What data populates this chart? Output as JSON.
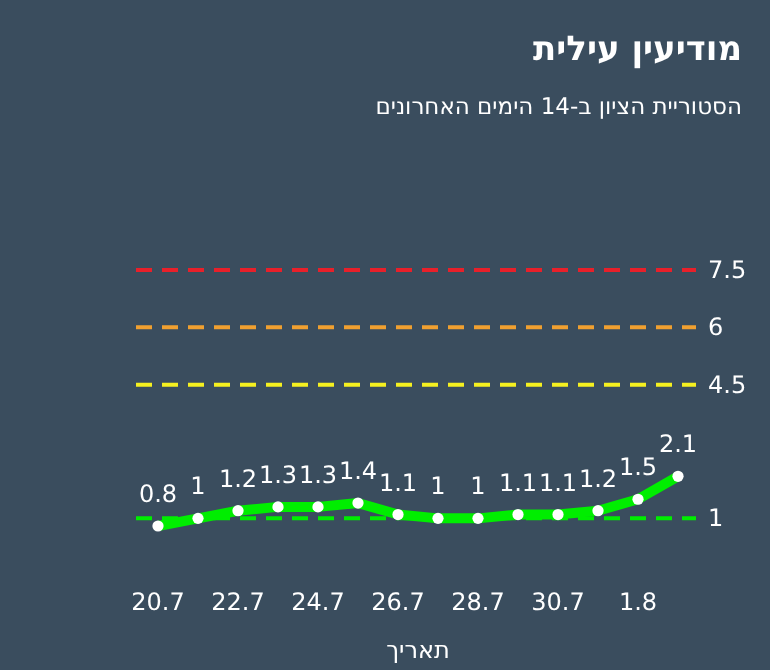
{
  "chart_data": {
    "type": "line",
    "title": "מודיעין עילית",
    "subtitle": "הסטוריית הציון ב-14 הימים האחרונים",
    "xlabel": "תאריך",
    "categories": [
      "20.7",
      null,
      "22.7",
      null,
      "24.7",
      null,
      "26.7",
      null,
      "28.7",
      null,
      "30.7",
      null,
      "1.8",
      null
    ],
    "series": [
      {
        "color": "#00ee00",
        "values": [
          0.8,
          1,
          1.2,
          1.3,
          1.3,
          1.4,
          1.1,
          1,
          1,
          1.1,
          1.1,
          1.2,
          1.5,
          2.1
        ]
      }
    ],
    "tick_labels": "x",
    "marker": "circle",
    "line_style": "solid",
    "data_labels": true,
    "ref_lines": [
      {
        "axis": "y",
        "value": 7.5,
        "label": "7.5",
        "color": "#e8202a",
        "line_style": "dashed"
      },
      {
        "axis": "y",
        "value": 6,
        "label": "6",
        "color": "#f0a030",
        "line_style": "dashed"
      },
      {
        "axis": "y",
        "value": 4.5,
        "label": "4.5",
        "color": "#f5f020",
        "line_style": "dashed"
      },
      {
        "axis": "y",
        "value": 1,
        "label": "1",
        "color": "#00ee00",
        "line_style": "dashed"
      }
    ]
  }
}
